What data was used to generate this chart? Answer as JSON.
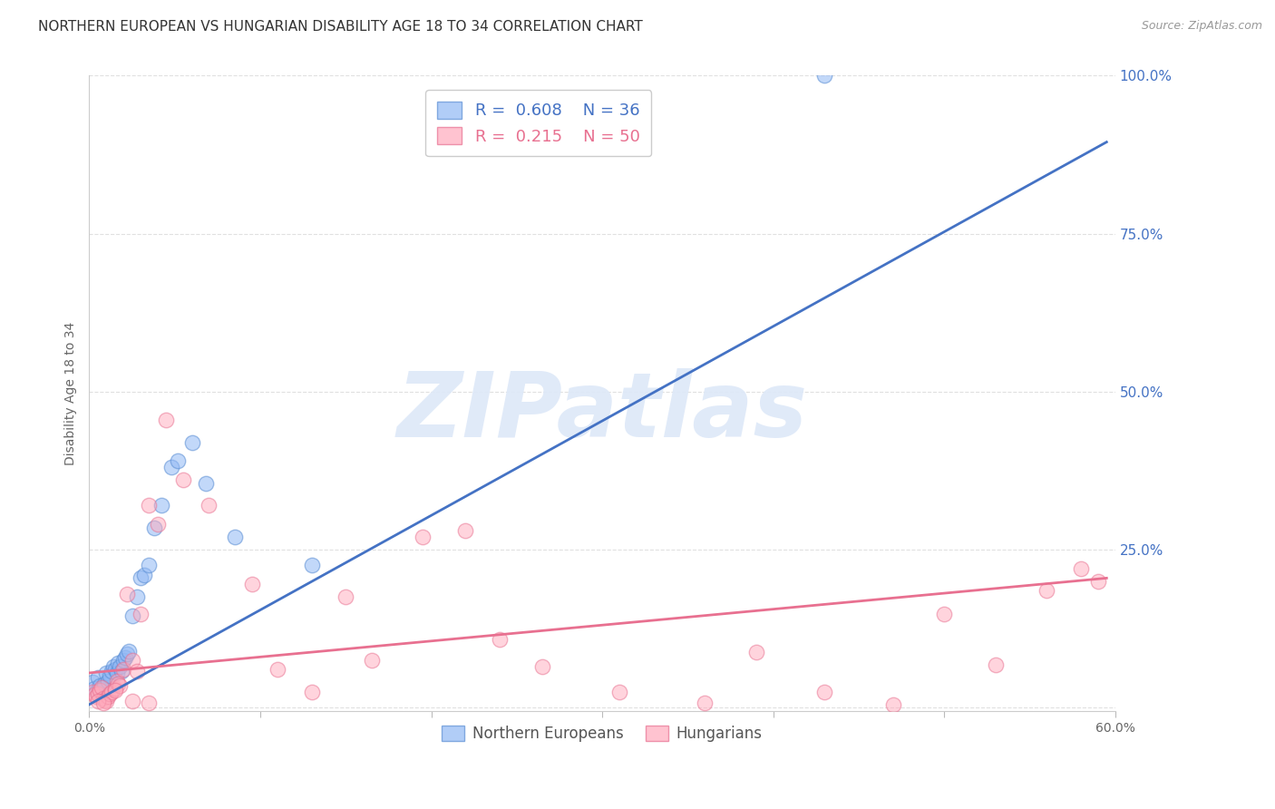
{
  "title": "NORTHERN EUROPEAN VS HUNGARIAN DISABILITY AGE 18 TO 34 CORRELATION CHART",
  "source": "Source: ZipAtlas.com",
  "ylabel": "Disability Age 18 to 34",
  "xlim": [
    0.0,
    0.6
  ],
  "ylim": [
    -0.005,
    1.0
  ],
  "xtick_positions": [
    0.0,
    0.1,
    0.2,
    0.3,
    0.4,
    0.5,
    0.6
  ],
  "xtick_labels": [
    "0.0%",
    "",
    "",
    "",
    "",
    "",
    "60.0%"
  ],
  "ytick_positions": [
    0.0,
    0.25,
    0.5,
    0.75,
    1.0
  ],
  "ytick_labels_right": [
    "",
    "25.0%",
    "50.0%",
    "75.0%",
    "100.0%"
  ],
  "legend_blue_R": "0.608",
  "legend_blue_N": "36",
  "legend_pink_R": "0.215",
  "legend_pink_N": "50",
  "blue_scatter_color": "#91B8F5",
  "blue_edge_color": "#5B8FD4",
  "pink_scatter_color": "#FFAABC",
  "pink_edge_color": "#E87090",
  "blue_line_color": "#4472C4",
  "pink_line_color": "#E87090",
  "blue_line_x": [
    0.0,
    0.595
  ],
  "blue_line_y": [
    0.005,
    0.895
  ],
  "pink_line_x": [
    0.0,
    0.595
  ],
  "pink_line_y": [
    0.055,
    0.205
  ],
  "blue_scatter_x": [
    0.002,
    0.003,
    0.004,
    0.005,
    0.006,
    0.007,
    0.008,
    0.009,
    0.01,
    0.011,
    0.012,
    0.013,
    0.014,
    0.015,
    0.016,
    0.017,
    0.018,
    0.019,
    0.02,
    0.021,
    0.022,
    0.023,
    0.025,
    0.028,
    0.03,
    0.032,
    0.035,
    0.038,
    0.042,
    0.048,
    0.052,
    0.06,
    0.068,
    0.085,
    0.13,
    0.43
  ],
  "blue_scatter_y": [
    0.04,
    0.03,
    0.025,
    0.048,
    0.035,
    0.028,
    0.032,
    0.038,
    0.055,
    0.042,
    0.05,
    0.058,
    0.065,
    0.06,
    0.055,
    0.07,
    0.065,
    0.058,
    0.075,
    0.08,
    0.085,
    0.09,
    0.145,
    0.175,
    0.205,
    0.21,
    0.225,
    0.285,
    0.32,
    0.38,
    0.39,
    0.42,
    0.355,
    0.27,
    0.225,
    1.0
  ],
  "pink_scatter_x": [
    0.002,
    0.003,
    0.004,
    0.005,
    0.006,
    0.007,
    0.008,
    0.009,
    0.01,
    0.011,
    0.012,
    0.013,
    0.015,
    0.016,
    0.017,
    0.018,
    0.02,
    0.022,
    0.025,
    0.028,
    0.03,
    0.035,
    0.04,
    0.045,
    0.055,
    0.07,
    0.095,
    0.11,
    0.13,
    0.15,
    0.165,
    0.195,
    0.22,
    0.24,
    0.265,
    0.31,
    0.36,
    0.39,
    0.43,
    0.47,
    0.5,
    0.53,
    0.56,
    0.58,
    0.59,
    0.005,
    0.008,
    0.015,
    0.025,
    0.035
  ],
  "pink_scatter_y": [
    0.025,
    0.02,
    0.018,
    0.022,
    0.028,
    0.032,
    0.015,
    0.012,
    0.01,
    0.018,
    0.022,
    0.025,
    0.03,
    0.042,
    0.038,
    0.035,
    0.06,
    0.18,
    0.075,
    0.058,
    0.148,
    0.32,
    0.29,
    0.455,
    0.36,
    0.32,
    0.195,
    0.06,
    0.025,
    0.175,
    0.075,
    0.27,
    0.28,
    0.108,
    0.065,
    0.025,
    0.008,
    0.088,
    0.025,
    0.005,
    0.148,
    0.068,
    0.185,
    0.22,
    0.2,
    0.01,
    0.008,
    0.028,
    0.01,
    0.008
  ],
  "background_color": "#ffffff",
  "title_color": "#333333",
  "axis_label_color": "#666666",
  "right_tick_color": "#4472C4",
  "grid_color": "#e0e0e0",
  "watermark": "ZIPatlas",
  "watermark_color": "#dde8f8",
  "title_fontsize": 11,
  "source_fontsize": 9,
  "legend_fontsize": 13,
  "axis_fontsize": 10
}
